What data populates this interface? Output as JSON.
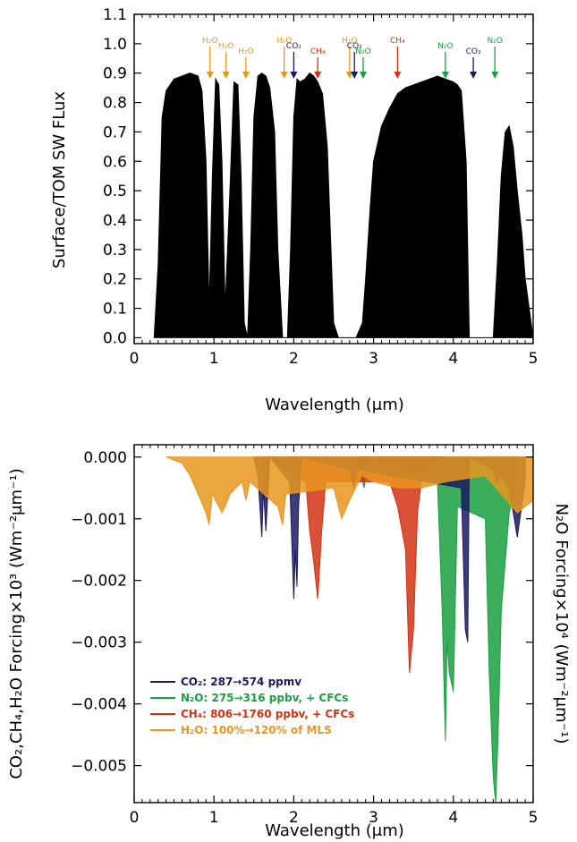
{
  "chart_data": [
    {
      "type": "area",
      "title": "",
      "xlabel": "Wavelength (μm)",
      "ylabel": "Surface/TOM SW FLux",
      "xlim": [
        0,
        5
      ],
      "ylim": [
        -0.02,
        1.1
      ],
      "xticks": [
        "0",
        "1",
        "2",
        "3",
        "4",
        "5"
      ],
      "yticks": [
        "0.0",
        "0.1",
        "0.2",
        "0.3",
        "0.4",
        "0.5",
        "0.6",
        "0.7",
        "0.8",
        "0.9",
        "1.0",
        "1.1"
      ],
      "series": [
        {
          "color": "#000000",
          "x": [
            0.25,
            0.3,
            0.35,
            0.4,
            0.5,
            0.6,
            0.7,
            0.8,
            0.85,
            0.9,
            0.94,
            0.98,
            1.02,
            1.06,
            1.1,
            1.14,
            1.2,
            1.25,
            1.3,
            1.34,
            1.38,
            1.42,
            1.46,
            1.5,
            1.55,
            1.6,
            1.65,
            1.7,
            1.76,
            1.8,
            1.86,
            1.92,
            1.96,
            2.0,
            2.04,
            2.08,
            2.14,
            2.2,
            2.25,
            2.3,
            2.36,
            2.42,
            2.46,
            2.5,
            2.56,
            2.62,
            2.7,
            2.78,
            2.86,
            2.9,
            2.96,
            3.0,
            3.1,
            3.2,
            3.3,
            3.4,
            3.5,
            3.6,
            3.7,
            3.8,
            3.9,
            4.0,
            4.05,
            4.1,
            4.16,
            4.2,
            4.3,
            4.4,
            4.5,
            4.55,
            4.6,
            4.65,
            4.7,
            4.75,
            4.8,
            4.86,
            4.9,
            5.0
          ],
          "values": [
            0.0,
            0.25,
            0.75,
            0.84,
            0.88,
            0.89,
            0.9,
            0.89,
            0.84,
            0.6,
            0.1,
            0.55,
            0.88,
            0.86,
            0.6,
            0.1,
            0.5,
            0.87,
            0.86,
            0.55,
            0.05,
            0.0,
            0.3,
            0.75,
            0.89,
            0.9,
            0.89,
            0.85,
            0.7,
            0.3,
            0.0,
            0.0,
            0.3,
            0.75,
            0.88,
            0.87,
            0.88,
            0.9,
            0.89,
            0.87,
            0.83,
            0.65,
            0.35,
            0.05,
            0.0,
            0.0,
            0.0,
            0.0,
            0.05,
            0.2,
            0.45,
            0.6,
            0.72,
            0.78,
            0.83,
            0.85,
            0.86,
            0.87,
            0.88,
            0.89,
            0.88,
            0.87,
            0.86,
            0.84,
            0.6,
            0.0,
            0.0,
            0.0,
            0.0,
            0.25,
            0.55,
            0.7,
            0.72,
            0.65,
            0.5,
            0.35,
            0.2,
            0.0
          ]
        }
      ],
      "annotations": [
        {
          "label": "H₂O",
          "x": 0.95,
          "color": "#e8961e"
        },
        {
          "label": "H₂O",
          "x": 1.15,
          "color": "#e8961e"
        },
        {
          "label": "H₂O",
          "x": 1.4,
          "color": "#e8961e"
        },
        {
          "label": "H₂O",
          "x": 1.88,
          "color": "#e8961e"
        },
        {
          "label": "CO₂",
          "x": 2.0,
          "color": "#1a1a60"
        },
        {
          "label": "CH₄",
          "x": 2.3,
          "color": "#d23214"
        },
        {
          "label": "H₂O",
          "x": 2.7,
          "color": "#e8961e"
        },
        {
          "label": "CO₂",
          "x": 2.76,
          "color": "#1a1a60"
        },
        {
          "label": "N₂O",
          "x": 2.87,
          "color": "#19a040"
        },
        {
          "label": "CH₄",
          "x": 3.3,
          "color": "#d23214"
        },
        {
          "label": "N₂O",
          "x": 3.9,
          "color": "#19a040"
        },
        {
          "label": "CO₂",
          "x": 4.25,
          "color": "#1a1a60"
        },
        {
          "label": "N₂O",
          "x": 4.52,
          "color": "#19a040"
        }
      ]
    },
    {
      "type": "line",
      "title": "",
      "xlabel": "Wavelength (μm)",
      "ylabel": "CO₂,CH₄,H₂O Forcing×10³ (Wm⁻²μm⁻¹)",
      "y2label": "N₂O Forcing×10⁴ (Wm⁻²μm⁻¹)",
      "xlim": [
        0,
        5
      ],
      "ylim": [
        -0.0056,
        0.0002
      ],
      "xticks": [
        "0",
        "1",
        "2",
        "3",
        "4",
        "5"
      ],
      "yticks": [
        "0.000",
        "−0.001",
        "−0.002",
        "−0.003",
        "−0.004",
        "−0.005"
      ],
      "legend_position": "lower-left",
      "series": [
        {
          "name": "CO₂: 287→574 ppmv",
          "color": "#1a1a60",
          "x": [
            1.5,
            1.55,
            1.6,
            1.62,
            1.65,
            1.7,
            1.95,
            2.0,
            2.02,
            2.04,
            2.06,
            2.1,
            2.7,
            2.75,
            2.8,
            4.1,
            4.15,
            4.18,
            4.2,
            4.5,
            4.55,
            4.6,
            4.7,
            4.8,
            4.9
          ],
          "values": [
            0.0,
            -0.0003,
            -0.0013,
            -0.0005,
            -0.0012,
            0.0,
            -0.0004,
            -0.0023,
            -0.0015,
            -0.0021,
            -0.0008,
            0.0,
            -0.0002,
            -0.0005,
            -0.0002,
            -0.0005,
            -0.0028,
            -0.003,
            0.0,
            -0.0002,
            -0.0004,
            -0.0003,
            -0.0005,
            -0.0013,
            -0.0004
          ]
        },
        {
          "name": "N₂O: 275→316 ppbv, + CFCs",
          "color": "#19a040",
          "x": [
            2.8,
            2.88,
            2.95,
            3.8,
            3.86,
            3.9,
            3.92,
            3.95,
            4.0,
            4.05,
            4.4,
            4.45,
            4.5,
            4.53,
            4.56,
            4.6,
            4.7,
            4.8
          ],
          "values": [
            0.0,
            -0.0005,
            0.0,
            -0.0004,
            -0.0025,
            -0.0046,
            -0.003,
            -0.0035,
            -0.0038,
            -0.0008,
            -0.001,
            -0.0035,
            -0.0052,
            -0.0056,
            -0.0045,
            -0.0025,
            -0.0009,
            -0.0004
          ]
        },
        {
          "name": "CH₄: 806→1760 ppbv, + CFCs",
          "color": "#d23214",
          "x": [
            1.6,
            1.66,
            1.7,
            2.15,
            2.2,
            2.25,
            2.3,
            2.35,
            2.4,
            3.2,
            3.3,
            3.4,
            3.45,
            3.5,
            3.55,
            3.6,
            3.7,
            3.8,
            3.9
          ],
          "values": [
            0.0,
            -0.0007,
            0.0,
            -0.0004,
            -0.0012,
            -0.0017,
            -0.0023,
            -0.0012,
            -0.0004,
            -0.0004,
            -0.0008,
            -0.0015,
            -0.0035,
            -0.0028,
            -0.0009,
            -0.0004,
            -0.0002,
            -0.0001,
            0.0
          ]
        },
        {
          "name": "H₂O: 100%→120% of MLS",
          "color": "#e8961e",
          "x": [
            0.4,
            0.6,
            0.7,
            0.8,
            0.9,
            0.94,
            0.98,
            1.1,
            1.14,
            1.2,
            1.35,
            1.4,
            1.45,
            1.8,
            1.86,
            1.9,
            2.5,
            2.6,
            2.7,
            2.85,
            3.0,
            3.3,
            3.6,
            3.9,
            4.4,
            4.6,
            4.8,
            5.0
          ],
          "values": [
            0.0,
            -0.0001,
            -0.0003,
            -0.0006,
            -0.0009,
            -0.0011,
            -0.0006,
            -0.0009,
            -0.0008,
            -0.0006,
            -0.0004,
            -0.0007,
            -0.0004,
            -0.0008,
            -0.0011,
            -0.0006,
            -0.0005,
            -0.001,
            -0.0007,
            -0.0003,
            -0.0004,
            -0.0005,
            -0.0005,
            -0.0004,
            -0.0003,
            -0.0006,
            -0.0009,
            -0.0007
          ]
        }
      ]
    }
  ]
}
